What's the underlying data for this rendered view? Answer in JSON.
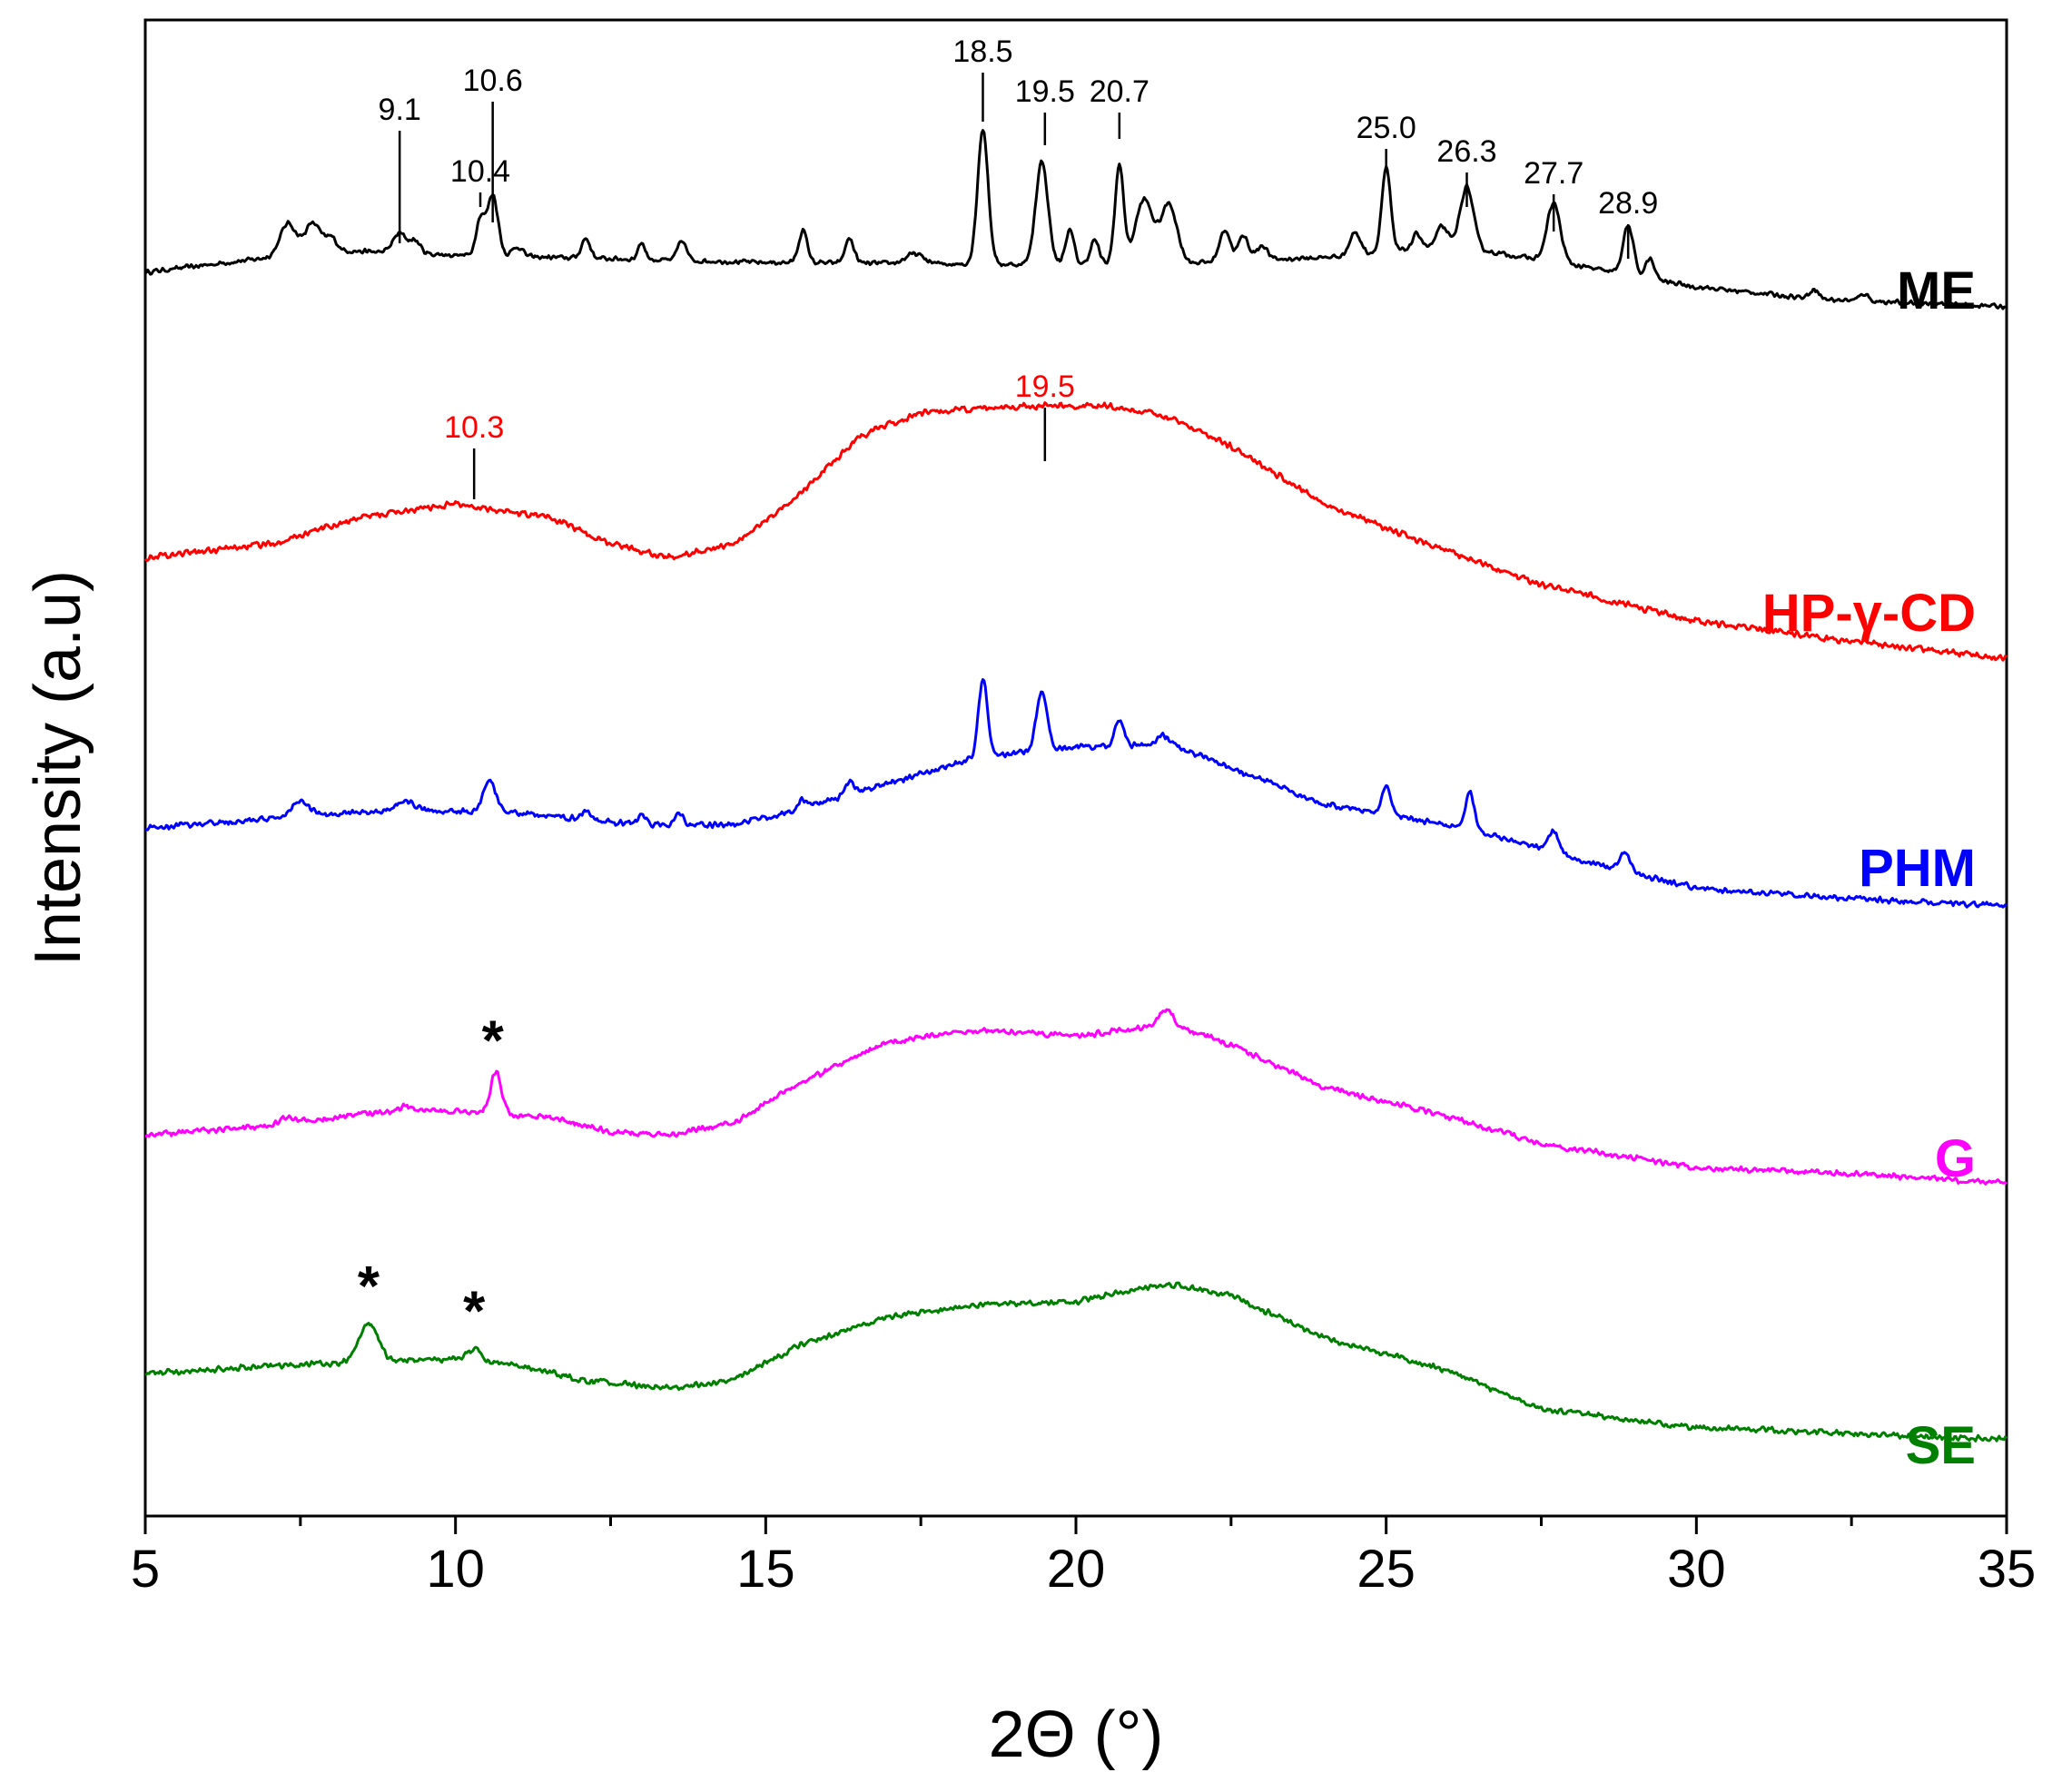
{
  "chart_data": {
    "type": "line",
    "xlabel": "2Θ (°)",
    "ylabel": "Intensity (a.u)",
    "xlim": [
      5,
      35
    ],
    "x_ticks": [
      "5",
      "10",
      "15",
      "20",
      "25",
      "30",
      "35"
    ],
    "grid": false,
    "legend": "none (series labelled at the right end of each trace)",
    "y_ticks": "none (stacked, offset patterns in arbitrary units)",
    "series": [
      {
        "name": "ME",
        "color": "#000000",
        "label_color": "#000000",
        "baseline": [
          [
            5,
            0.3
          ],
          [
            8,
            1.2
          ],
          [
            10,
            1.0
          ],
          [
            15,
            0.7
          ],
          [
            20,
            0.6
          ],
          [
            22,
            0.7
          ],
          [
            24,
            0.9
          ],
          [
            26,
            1.4
          ],
          [
            28,
            0.6
          ],
          [
            30,
            -0.3
          ],
          [
            32,
            -0.8
          ],
          [
            35,
            -1.1
          ]
        ],
        "peaks": [
          {
            "x": 7.3,
            "h": 1.3,
            "w": 0.18
          },
          {
            "x": 7.7,
            "h": 1.2,
            "w": 0.18
          },
          {
            "x": 8.0,
            "h": 0.5,
            "w": 0.12
          },
          {
            "x": 9.1,
            "h": 0.8,
            "w": 0.15
          },
          {
            "x": 9.35,
            "h": 0.5,
            "w": 0.12
          },
          {
            "x": 10.4,
            "h": 1.5,
            "w": 0.1
          },
          {
            "x": 10.6,
            "h": 2.5,
            "w": 0.12
          },
          {
            "x": 11.0,
            "h": 0.4,
            "w": 0.12
          },
          {
            "x": 12.1,
            "h": 0.8,
            "w": 0.1
          },
          {
            "x": 13.0,
            "h": 0.7,
            "w": 0.08
          },
          {
            "x": 13.65,
            "h": 0.8,
            "w": 0.1
          },
          {
            "x": 15.6,
            "h": 1.3,
            "w": 0.1
          },
          {
            "x": 16.35,
            "h": 1.0,
            "w": 0.1
          },
          {
            "x": 17.4,
            "h": 0.4,
            "w": 0.2
          },
          {
            "x": 18.5,
            "h": 5.5,
            "w": 0.12
          },
          {
            "x": 19.45,
            "h": 4.2,
            "w": 0.14
          },
          {
            "x": 19.9,
            "h": 1.4,
            "w": 0.1
          },
          {
            "x": 20.3,
            "h": 1.0,
            "w": 0.1
          },
          {
            "x": 20.7,
            "h": 4.0,
            "w": 0.1
          },
          {
            "x": 21.1,
            "h": 2.6,
            "w": 0.2
          },
          {
            "x": 21.5,
            "h": 2.4,
            "w": 0.18
          },
          {
            "x": 22.4,
            "h": 1.3,
            "w": 0.12
          },
          {
            "x": 22.7,
            "h": 1.0,
            "w": 0.12
          },
          {
            "x": 23.0,
            "h": 0.6,
            "w": 0.12
          },
          {
            "x": 24.5,
            "h": 0.9,
            "w": 0.12
          },
          {
            "x": 25.0,
            "h": 3.4,
            "w": 0.1
          },
          {
            "x": 25.5,
            "h": 0.6,
            "w": 0.1
          },
          {
            "x": 25.9,
            "h": 0.8,
            "w": 0.12
          },
          {
            "x": 26.3,
            "h": 2.5,
            "w": 0.15
          },
          {
            "x": 27.7,
            "h": 2.4,
            "w": 0.15
          },
          {
            "x": 28.9,
            "h": 2.0,
            "w": 0.12
          },
          {
            "x": 29.25,
            "h": 0.8,
            "w": 0.1
          },
          {
            "x": 31.9,
            "h": 0.4,
            "w": 0.1
          },
          {
            "x": 32.7,
            "h": 0.3,
            "w": 0.1
          }
        ],
        "annotations": [
          {
            "text": "9.1",
            "x": 9.1
          },
          {
            "text": "10.4",
            "x": 10.4
          },
          {
            "text": "10.6",
            "x": 10.6
          },
          {
            "text": "18.5",
            "x": 18.5
          },
          {
            "text": "19.5",
            "x": 19.5
          },
          {
            "text": "20.7",
            "x": 20.7
          },
          {
            "text": "25.0",
            "x": 25.0
          },
          {
            "text": "26.3",
            "x": 26.3
          },
          {
            "text": "27.7",
            "x": 27.7
          },
          {
            "text": "28.9",
            "x": 28.9
          }
        ]
      },
      {
        "name": "HP-γ-CD",
        "color": "#ff0000",
        "label_color": "#ff0000",
        "baseline": [
          [
            5,
            0
          ],
          [
            7,
            0.4
          ],
          [
            8.5,
            1.2
          ],
          [
            10,
            1.6
          ],
          [
            11.5,
            1.2
          ],
          [
            12.5,
            0.4
          ],
          [
            13.5,
            0
          ],
          [
            14.5,
            0.4
          ],
          [
            15.5,
            1.8
          ],
          [
            16.5,
            3.6
          ],
          [
            17.5,
            4.3
          ],
          [
            19,
            4.5
          ],
          [
            20.5,
            4.5
          ],
          [
            21.5,
            4.2
          ],
          [
            22.5,
            3.3
          ],
          [
            24,
            1.6
          ],
          [
            25.5,
            0.5
          ],
          [
            27.5,
            -0.8
          ],
          [
            30,
            -1.9
          ],
          [
            32.5,
            -2.5
          ],
          [
            35,
            -3.0
          ]
        ],
        "peaks": [],
        "annotations": [
          {
            "text": "10.3",
            "x": 10.3
          },
          {
            "text": "19.5",
            "x": 19.5
          }
        ]
      },
      {
        "name": "PHM",
        "color": "#0000ff",
        "label_color": "#0000ff",
        "baseline": [
          [
            5,
            0
          ],
          [
            7,
            0.3
          ],
          [
            9,
            0.6
          ],
          [
            11,
            0.5
          ],
          [
            13,
            0.1
          ],
          [
            14.5,
            0.1
          ],
          [
            15.5,
            0.6
          ],
          [
            17,
            1.5
          ],
          [
            18.5,
            2.4
          ],
          [
            20,
            2.7
          ],
          [
            21.5,
            2.8
          ],
          [
            22.5,
            2.0
          ],
          [
            24,
            0.8
          ],
          [
            26,
            0.1
          ],
          [
            27,
            -0.4
          ],
          [
            28.5,
            -1.3
          ],
          [
            30,
            -2.0
          ],
          [
            32,
            -2.3
          ],
          [
            35,
            -2.6
          ]
        ],
        "peaks": [
          {
            "x": 7.5,
            "h": 0.5,
            "w": 0.2
          },
          {
            "x": 9.2,
            "h": 0.3,
            "w": 0.2
          },
          {
            "x": 10.55,
            "h": 1.0,
            "w": 0.15
          },
          {
            "x": 12.1,
            "h": 0.3,
            "w": 0.1
          },
          {
            "x": 13.0,
            "h": 0.3,
            "w": 0.1
          },
          {
            "x": 13.6,
            "h": 0.4,
            "w": 0.1
          },
          {
            "x": 15.6,
            "h": 0.3,
            "w": 0.1
          },
          {
            "x": 16.35,
            "h": 0.4,
            "w": 0.1
          },
          {
            "x": 18.5,
            "h": 2.6,
            "w": 0.1
          },
          {
            "x": 19.45,
            "h": 2.0,
            "w": 0.12
          },
          {
            "x": 20.7,
            "h": 0.9,
            "w": 0.1
          },
          {
            "x": 21.4,
            "h": 0.3,
            "w": 0.15
          },
          {
            "x": 25.0,
            "h": 0.9,
            "w": 0.1
          },
          {
            "x": 26.35,
            "h": 1.3,
            "w": 0.1
          },
          {
            "x": 27.7,
            "h": 0.7,
            "w": 0.12
          },
          {
            "x": 28.85,
            "h": 0.7,
            "w": 0.12
          }
        ],
        "annotations": []
      },
      {
        "name": "G",
        "color": "#ff00ff",
        "label_color": "#ff00ff",
        "baseline": [
          [
            5,
            0
          ],
          [
            7,
            0.3
          ],
          [
            8.5,
            0.7
          ],
          [
            10,
            0.8
          ],
          [
            11.5,
            0.6
          ],
          [
            12.5,
            0.1
          ],
          [
            13.5,
            0
          ],
          [
            14.5,
            0.4
          ],
          [
            15.5,
            1.7
          ],
          [
            17,
            3.1
          ],
          [
            18.5,
            3.5
          ],
          [
            20,
            3.3
          ],
          [
            21.5,
            3.7
          ],
          [
            22.5,
            3.0
          ],
          [
            24,
            1.6
          ],
          [
            26,
            0.6
          ],
          [
            27.5,
            -0.3
          ],
          [
            30,
            -1.1
          ],
          [
            32.5,
            -1.3
          ],
          [
            35,
            -1.6
          ]
        ],
        "peaks": [
          {
            "x": 7.3,
            "h": 0.2,
            "w": 0.2
          },
          {
            "x": 9.2,
            "h": 0.2,
            "w": 0.2
          },
          {
            "x": 10.65,
            "h": 1.4,
            "w": 0.12
          },
          {
            "x": 21.45,
            "h": 0.5,
            "w": 0.15
          }
        ],
        "annotations": [
          {
            "text": "*",
            "x": 10.6
          }
        ]
      },
      {
        "name": "SE",
        "color": "#008000",
        "label_color": "#008000",
        "baseline": [
          [
            5,
            0
          ],
          [
            7.5,
            0.3
          ],
          [
            9,
            0.4
          ],
          [
            10,
            0.5
          ],
          [
            11,
            0.3
          ],
          [
            12,
            -0.2
          ],
          [
            13.5,
            -0.5
          ],
          [
            14.5,
            -0.2
          ],
          [
            15.5,
            0.9
          ],
          [
            17,
            1.9
          ],
          [
            18.5,
            2.3
          ],
          [
            20,
            2.4
          ],
          [
            21.5,
            3.0
          ],
          [
            22.5,
            2.6
          ],
          [
            24,
            1.2
          ],
          [
            26,
            0.1
          ],
          [
            27.5,
            -1.2
          ],
          [
            30,
            -1.8
          ],
          [
            32.5,
            -2.0
          ],
          [
            35,
            -2.2
          ]
        ],
        "peaks": [
          {
            "x": 8.6,
            "h": 1.3,
            "w": 0.22
          },
          {
            "x": 10.3,
            "h": 0.4,
            "w": 0.15
          }
        ],
        "annotations": [
          {
            "text": "*",
            "x": 8.6
          },
          {
            "text": "*",
            "x": 10.3
          }
        ]
      }
    ]
  }
}
